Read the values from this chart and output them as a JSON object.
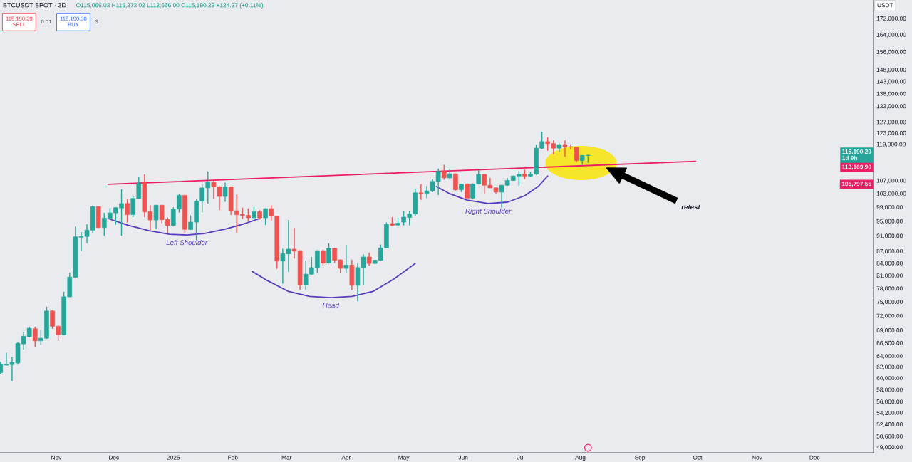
{
  "chart_data": {
    "type": "candlestick",
    "title": "BTCUSDT SPOT · 3D",
    "subtitle": "O115,066.03 H115,373.02 L112,666.00 C115,190.29 +124.27 (+0.11%)",
    "ylabel": "USDT",
    "log": "y",
    "xlim": [
      "2024-10-02T17:00",
      "2025-12-31T17:00"
    ],
    "ylim": [
      48200,
      181500
    ],
    "xticks": [
      {
        "value": "2024-11-01",
        "label": "Nov"
      },
      {
        "value": "2024-12-01",
        "label": "Dec"
      },
      {
        "value": "2025-01-01",
        "label": "2025"
      },
      {
        "value": "2025-02-01",
        "label": "Feb"
      },
      {
        "value": "2025-03-01",
        "label": "Mar"
      },
      {
        "value": "2025-04-01",
        "label": "Apr"
      },
      {
        "value": "2025-05-01",
        "label": "May"
      },
      {
        "value": "2025-06-01",
        "label": "Jun"
      },
      {
        "value": "2025-07-01",
        "label": "Jul"
      },
      {
        "value": "2025-08-01",
        "label": "Aug"
      },
      {
        "value": "2025-09-01",
        "label": "Sep"
      },
      {
        "value": "2025-10-01",
        "label": "Oct"
      },
      {
        "value": "2025-11-01",
        "label": "Nov"
      },
      {
        "value": "2025-12-01",
        "label": "Dec"
      }
    ],
    "yticks": [
      {
        "value": 49000,
        "label": "49,000.00"
      },
      {
        "value": 50600,
        "label": "50,600.00"
      },
      {
        "value": 52400,
        "label": "52,400.00"
      },
      {
        "value": 54200,
        "label": "54,200.00"
      },
      {
        "value": 56000,
        "label": "56,000.00"
      },
      {
        "value": 58000,
        "label": "58,000.00"
      },
      {
        "value": 60000,
        "label": "60,000.00"
      },
      {
        "value": 62000,
        "label": "62,000.00"
      },
      {
        "value": 64000,
        "label": "64,000.00"
      },
      {
        "value": 66500,
        "label": "66,500.00"
      },
      {
        "value": 69000,
        "label": "69,000.00"
      },
      {
        "value": 72000,
        "label": "72,000.00"
      },
      {
        "value": 75000,
        "label": "75,000.00"
      },
      {
        "value": 78000,
        "label": "78,000.00"
      },
      {
        "value": 81000,
        "label": "81,000.00"
      },
      {
        "value": 84000,
        "label": "84,000.00"
      },
      {
        "value": 87000,
        "label": "87,000.00"
      },
      {
        "value": 91000,
        "label": "91,000.00"
      },
      {
        "value": 95000,
        "label": "95,000.00"
      },
      {
        "value": 99000,
        "label": "99,000.00"
      },
      {
        "value": 103000,
        "label": "103,000.00"
      },
      {
        "value": 107000,
        "label": "107,000.00"
      },
      {
        "value": 119000,
        "label": "119,000.00"
      },
      {
        "value": 123000,
        "label": "123,000.00"
      },
      {
        "value": 127000,
        "label": "127,000.00"
      },
      {
        "value": 133000,
        "label": "133,000.00"
      },
      {
        "value": 138000,
        "label": "138,000.00"
      },
      {
        "value": 143000,
        "label": "143,000.00"
      },
      {
        "value": 148000,
        "label": "148,000.00"
      },
      {
        "value": 156000,
        "label": "156,000.00"
      },
      {
        "value": 164000,
        "label": "164,000.00"
      },
      {
        "value": 172000,
        "label": "172,000.00"
      }
    ],
    "annotations": [
      "retest",
      "115,190.29\n1d 9h",
      "113,169.90",
      "105,797.55",
      "115,190.29\nSELL",
      "0.01",
      "115,190.30\nBUY",
      "3"
    ],
    "x": [
      "2024-10-03",
      "2024-10-06",
      "2024-10-09",
      "2024-10-12",
      "2024-10-15",
      "2024-10-18",
      "2024-10-21",
      "2024-10-24",
      "2024-10-27",
      "2024-10-30",
      "2024-11-02",
      "2024-11-05",
      "2024-11-08",
      "2024-11-11",
      "2024-11-14",
      "2024-11-17",
      "2024-11-20",
      "2024-11-23",
      "2024-11-26",
      "2024-11-29",
      "2024-12-02",
      "2024-12-05",
      "2024-12-08",
      "2024-12-11",
      "2024-12-14",
      "2024-12-17",
      "2024-12-20",
      "2024-12-23",
      "2024-12-26",
      "2024-12-29",
      "2025-01-01",
      "2025-01-04",
      "2025-01-07",
      "2025-01-10",
      "2025-01-13",
      "2025-01-16",
      "2025-01-19",
      "2025-01-22",
      "2025-01-25",
      "2025-01-28",
      "2025-01-31",
      "2025-02-03",
      "2025-02-06",
      "2025-02-09",
      "2025-02-12",
      "2025-02-15",
      "2025-02-18",
      "2025-02-21",
      "2025-02-24",
      "2025-02-27",
      "2025-03-02",
      "2025-03-05",
      "2025-03-08",
      "2025-03-11",
      "2025-03-14",
      "2025-03-17",
      "2025-03-20",
      "2025-03-23",
      "2025-03-26",
      "2025-03-29",
      "2025-04-01",
      "2025-04-04",
      "2025-04-07",
      "2025-04-10",
      "2025-04-13",
      "2025-04-16",
      "2025-04-19",
      "2025-04-22",
      "2025-04-25",
      "2025-04-28",
      "2025-05-01",
      "2025-05-04",
      "2025-05-07",
      "2025-05-10",
      "2025-05-13",
      "2025-05-16",
      "2025-05-19",
      "2025-05-22",
      "2025-05-25",
      "2025-05-28",
      "2025-05-31",
      "2025-06-03",
      "2025-06-06",
      "2025-06-09",
      "2025-06-12",
      "2025-06-15",
      "2025-06-18",
      "2025-06-21",
      "2025-06-24",
      "2025-06-27",
      "2025-06-30",
      "2025-07-03",
      "2025-07-06",
      "2025-07-09",
      "2025-07-12",
      "2025-07-15",
      "2025-07-18",
      "2025-07-21",
      "2025-07-24",
      "2025-07-27",
      "2025-07-30",
      "2025-08-02",
      "2025-08-05"
    ],
    "ohlc": [
      [
        60950,
        62900,
        60700,
        62400
      ],
      [
        62300,
        64600,
        62200,
        62400
      ],
      [
        62400,
        63800,
        59500,
        62800
      ],
      [
        62700,
        66700,
        62400,
        66400
      ],
      [
        66300,
        68700,
        65200,
        67800
      ],
      [
        67700,
        69700,
        67600,
        69400
      ],
      [
        69300,
        69700,
        65700,
        66900
      ],
      [
        66900,
        69100,
        66100,
        67400
      ],
      [
        67400,
        73900,
        67300,
        73000
      ],
      [
        73000,
        73200,
        69300,
        69800
      ],
      [
        69800,
        70100,
        66900,
        68100
      ],
      [
        68100,
        77200,
        68000,
        76100
      ],
      [
        76100,
        81700,
        76000,
        80600
      ],
      [
        80600,
        93500,
        80500,
        90700
      ],
      [
        90600,
        92000,
        87000,
        90800
      ],
      [
        90800,
        94100,
        89000,
        92500
      ],
      [
        92500,
        99400,
        91700,
        99100
      ],
      [
        99100,
        99200,
        93100,
        93200
      ],
      [
        93200,
        97300,
        91000,
        95800
      ],
      [
        95800,
        98700,
        95500,
        97300
      ],
      [
        97300,
        98900,
        94000,
        98800
      ],
      [
        98700,
        104300,
        91000,
        100000
      ],
      [
        100000,
        101200,
        94600,
        96800
      ],
      [
        96800,
        102100,
        96100,
        101500
      ],
      [
        101500,
        108100,
        101400,
        106200
      ],
      [
        106400,
        108900,
        96100,
        97600
      ],
      [
        97600,
        99500,
        92500,
        95300
      ],
      [
        95300,
        99600,
        92800,
        99500
      ],
      [
        99500,
        99600,
        94400,
        95400
      ],
      [
        95400,
        96000,
        91700,
        93800
      ],
      [
        93800,
        98900,
        93600,
        98400
      ],
      [
        98400,
        102900,
        97400,
        102400
      ],
      [
        102400,
        102900,
        91800,
        92700
      ],
      [
        92700,
        96600,
        92600,
        94700
      ],
      [
        94700,
        101200,
        89800,
        100700
      ],
      [
        100700,
        105900,
        97400,
        104700
      ],
      [
        104700,
        109900,
        100000,
        106400
      ],
      [
        106400,
        107000,
        101400,
        105000
      ],
      [
        105000,
        105200,
        98100,
        102100
      ],
      [
        102100,
        106300,
        100500,
        105000
      ],
      [
        105000,
        105100,
        96700,
        97900
      ],
      [
        97900,
        102700,
        91800,
        96800
      ],
      [
        96900,
        98800,
        95600,
        96600
      ],
      [
        96600,
        98600,
        95100,
        95900
      ],
      [
        95900,
        99000,
        95400,
        97600
      ],
      [
        97600,
        98100,
        95400,
        95900
      ],
      [
        95900,
        98600,
        93900,
        98500
      ],
      [
        98500,
        99500,
        95100,
        96400
      ],
      [
        96400,
        96500,
        82600,
        84500
      ],
      [
        84500,
        87600,
        79100,
        86300
      ],
      [
        86300,
        95300,
        81900,
        87500
      ],
      [
        87500,
        93100,
        85100,
        87000
      ],
      [
        87100,
        87200,
        77700,
        78800
      ],
      [
        78800,
        84600,
        77600,
        81300
      ],
      [
        81300,
        85500,
        81200,
        82900
      ],
      [
        82900,
        87200,
        81600,
        87100
      ],
      [
        87100,
        87400,
        83400,
        84000
      ],
      [
        84000,
        89000,
        83900,
        87700
      ],
      [
        87700,
        87800,
        84000,
        84700
      ],
      [
        84800,
        84900,
        81500,
        82700
      ],
      [
        82700,
        88600,
        81500,
        83500
      ],
      [
        83500,
        84800,
        77600,
        78700
      ],
      [
        78700,
        83900,
        75100,
        82900
      ],
      [
        82900,
        86200,
        78800,
        85500
      ],
      [
        85500,
        86600,
        83300,
        83900
      ],
      [
        83900,
        84800,
        83800,
        84700
      ],
      [
        84700,
        88700,
        84500,
        87800
      ],
      [
        87800,
        94600,
        87700,
        94100
      ],
      [
        94300,
        96100,
        93600,
        93800
      ],
      [
        93900,
        95900,
        93700,
        94400
      ],
      [
        94700,
        97800,
        93800,
        96100
      ],
      [
        96000,
        97900,
        93800,
        97000
      ],
      [
        97000,
        104400,
        96400,
        103200
      ],
      [
        103200,
        105900,
        101100,
        103000
      ],
      [
        103000,
        105200,
        101600,
        103800
      ],
      [
        103800,
        107400,
        103400,
        106700
      ],
      [
        106700,
        110800,
        102500,
        109900
      ],
      [
        110000,
        112000,
        107200,
        107800
      ],
      [
        107800,
        110800,
        107400,
        109100
      ],
      [
        109100,
        109200,
        103900,
        104100
      ],
      [
        104100,
        106000,
        103400,
        105900
      ],
      [
        105900,
        106100,
        101200,
        101600
      ],
      [
        101600,
        106100,
        101200,
        105900
      ],
      [
        105900,
        110400,
        105700,
        108900
      ],
      [
        108900,
        109000,
        103000,
        105500
      ],
      [
        105500,
        107800,
        104600,
        104700
      ],
      [
        104700,
        104800,
        103000,
        103400
      ],
      [
        103400,
        105600,
        98800,
        105500
      ],
      [
        105500,
        107800,
        105400,
        107000
      ],
      [
        107000,
        108500,
        106900,
        108400
      ],
      [
        108400,
        110000,
        105400,
        108900
      ],
      [
        109000,
        110400,
        107400,
        108400
      ],
      [
        108400,
        109700,
        108200,
        109000
      ],
      [
        109000,
        118800,
        108700,
        117600
      ],
      [
        117600,
        123400,
        117300,
        119900
      ],
      [
        119900,
        121300,
        116700,
        119200
      ],
      [
        119200,
        120400,
        115500,
        117600
      ],
      [
        117600,
        119200,
        116300,
        118800
      ],
      [
        118800,
        120300,
        114700,
        118100
      ],
      [
        118100,
        119000,
        117100,
        118000
      ],
      [
        118000,
        118100,
        113000,
        113400
      ],
      [
        113400,
        115300,
        112000,
        115100
      ],
      [
        115066.03,
        115373.02,
        112666.0,
        115190.29
      ]
    ],
    "colors": [
      "#26a69a",
      "#26a69a",
      "#26a69a",
      "#26a69a",
      "#26a69a",
      "#26a69a",
      "#ef5350",
      "#26a69a",
      "#26a69a",
      "#ef5350",
      "#ef5350",
      "#26a69a",
      "#26a69a",
      "#26a69a",
      "#26a69a",
      "#26a69a",
      "#26a69a",
      "#ef5350",
      "#26a69a",
      "#26a69a",
      "#26a69a",
      "#26a69a",
      "#ef5350",
      "#26a69a",
      "#26a69a",
      "#ef5350",
      "#ef5350",
      "#26a69a",
      "#ef5350",
      "#ef5350",
      "#26a69a",
      "#26a69a",
      "#ef5350",
      "#26a69a",
      "#26a69a",
      "#26a69a",
      "#26a69a",
      "#ef5350",
      "#ef5350",
      "#26a69a",
      "#ef5350",
      "#ef5350",
      "#ef5350",
      "#ef5350",
      "#26a69a",
      "#ef5350",
      "#26a69a",
      "#ef5350",
      "#ef5350",
      "#26a69a",
      "#26a69a",
      "#ef5350",
      "#ef5350",
      "#26a69a",
      "#26a69a",
      "#26a69a",
      "#ef5350",
      "#26a69a",
      "#ef5350",
      "#ef5350",
      "#26a69a",
      "#ef5350",
      "#26a69a",
      "#26a69a",
      "#ef5350",
      "#26a69a",
      "#26a69a",
      "#26a69a",
      "#ef5350",
      "#26a69a",
      "#26a69a",
      "#26a69a",
      "#26a69a",
      "#ef5350",
      "#26a69a",
      "#26a69a",
      "#26a69a",
      "#ef5350",
      "#26a69a",
      "#ef5350",
      "#26a69a",
      "#ef5350",
      "#26a69a",
      "#26a69a",
      "#ef5350",
      "#ef5350",
      "#ef5350",
      "#26a69a",
      "#26a69a",
      "#26a69a",
      "#26a69a",
      "#ef5350",
      "#26a69a",
      "#26a69a",
      "#26a69a",
      "#ef5350",
      "#ef5350",
      "#26a69a",
      "#ef5350",
      "#ef5350",
      "#ef5350",
      "#26a69a",
      "#26a69a"
    ],
    "series": [
      {
        "type": "line",
        "color": "#e91e63",
        "x": [
          "2024-11-28",
          "2025-09-30"
        ],
        "values": [
          105797.55,
          113169.9
        ]
      },
      {
        "type": "line",
        "name": "Left Shoulder",
        "color": "#5a3cc0",
        "x": [
          "2024-11-28",
          "2024-12-08",
          "2024-12-19",
          "2024-12-30",
          "2025-01-08",
          "2025-01-17",
          "2025-01-28",
          "2025-02-06",
          "2025-02-15"
        ],
        "values": [
          95700,
          93900,
          92400,
          91400,
          91200,
          91600,
          92800,
          94100,
          95700
        ]
      },
      {
        "type": "line",
        "name": "Head",
        "color": "#5a3cc0",
        "x": [
          "2025-02-11",
          "2025-02-19",
          "2025-03-02",
          "2025-03-13",
          "2025-03-24",
          "2025-04-04",
          "2025-04-15",
          "2025-04-26",
          "2025-05-07"
        ],
        "values": [
          82000,
          79800,
          77300,
          76200,
          75900,
          76200,
          77300,
          80200,
          83900
        ]
      },
      {
        "type": "line",
        "name": "Right Shoulder",
        "color": "#5a3cc0",
        "x": [
          "2025-05-18",
          "2025-05-25",
          "2025-06-03",
          "2025-06-14",
          "2025-06-24",
          "2025-07-03",
          "2025-07-10",
          "2025-07-15"
        ],
        "values": [
          105100,
          102900,
          101000,
          100000,
          100400,
          102300,
          105100,
          108400
        ]
      }
    ]
  }
}
